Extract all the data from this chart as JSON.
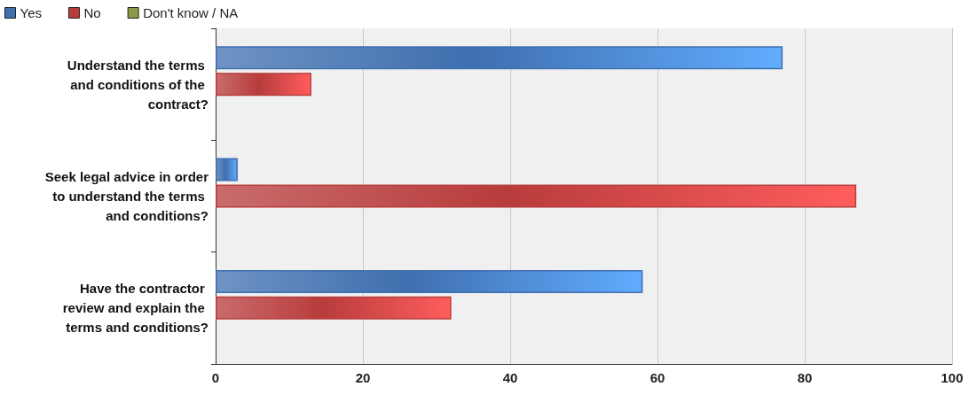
{
  "chart_data": {
    "type": "bar",
    "orientation": "horizontal",
    "categories": [
      "Understand the terms and conditions of the contract?",
      "Seek legal advice in order to understand the terms and conditions?",
      "Have the contractor review and explain the terms and conditions?"
    ],
    "series": [
      {
        "name": "Yes",
        "color": "#3f6faf",
        "values": [
          77,
          3,
          58
        ]
      },
      {
        "name": "No",
        "color": "#b83c3c",
        "values": [
          13,
          87,
          32
        ]
      },
      {
        "name": "Don't know / NA",
        "color": "#8a9a46",
        "values": [
          null,
          null,
          null
        ]
      }
    ],
    "xlim": [
      0,
      100
    ],
    "xticks": [
      0,
      20,
      40,
      60,
      80,
      100
    ],
    "grid": "x",
    "legend": "top left"
  }
}
